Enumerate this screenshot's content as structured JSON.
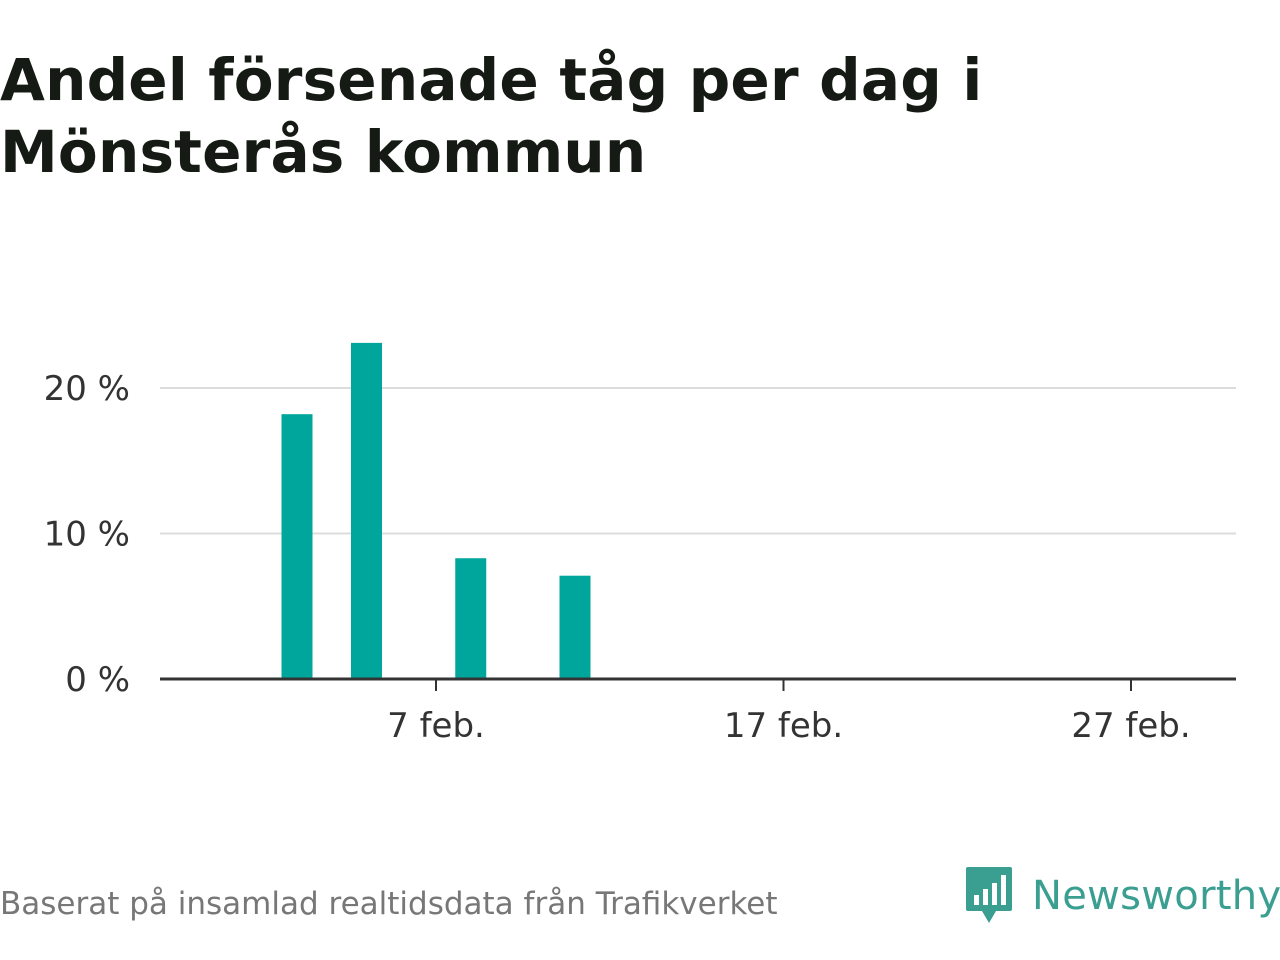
{
  "title": "Andel försenade tåg per dag i Mönsterås kommun",
  "source": "Baserat på insamlad realtidsdata från Trafikverket",
  "brand": {
    "name": "Newsworthy",
    "icon": "newsworthy-logo-icon"
  },
  "colors": {
    "bar": "#00a69b",
    "brand": "#3a9e91",
    "grid": "#dcdcdc",
    "axis": "#333333",
    "source_text": "#777777"
  },
  "chart_data": {
    "type": "bar",
    "title": "Andel försenade tåg per dag i Mönsterås kommun",
    "xlabel": "",
    "ylabel": "",
    "x_unit": "day of February",
    "categories": [
      "3 feb.",
      "5 feb.",
      "8 feb.",
      "11 feb."
    ],
    "x": [
      3,
      5,
      8,
      11
    ],
    "values": [
      18.2,
      23.1,
      8.3,
      7.1
    ],
    "value_unit": "%",
    "ylim": [
      0,
      25
    ],
    "xlim": [
      -2,
      29
    ],
    "y_ticks": [
      {
        "value": 0,
        "label": "0 %"
      },
      {
        "value": 10,
        "label": "10 %"
      },
      {
        "value": 20,
        "label": "20 %"
      }
    ],
    "x_ticks": [
      {
        "value": 7,
        "label": "7 feb."
      },
      {
        "value": 17,
        "label": "17 feb."
      },
      {
        "value": 27,
        "label": "27 feb."
      }
    ],
    "grid": true,
    "legend": "none"
  }
}
